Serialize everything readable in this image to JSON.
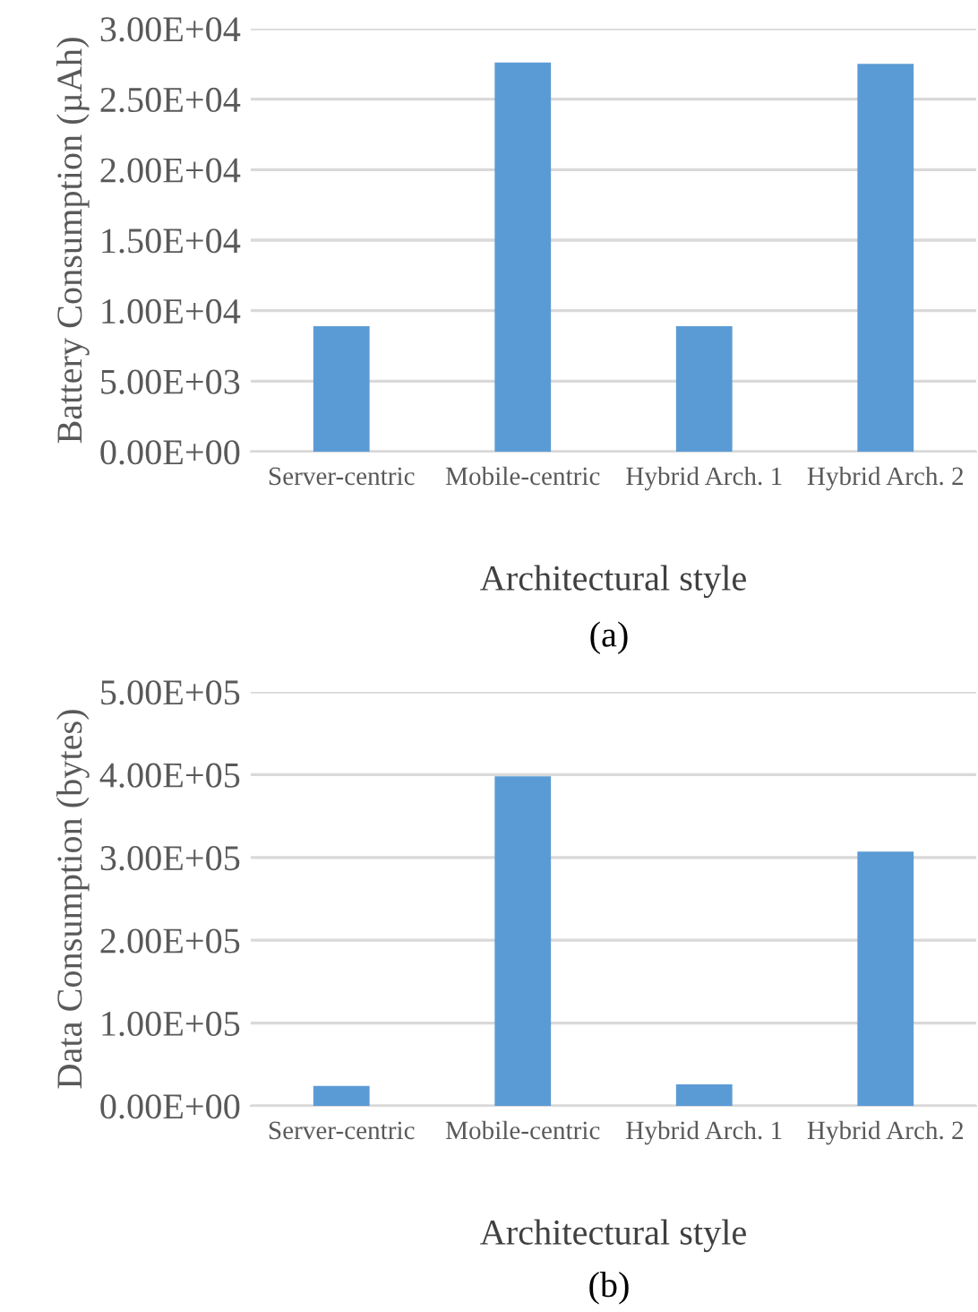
{
  "chart_data": [
    {
      "type": "bar",
      "categories": [
        "Server-centric",
        "Mobile-centric",
        "Hybrid Arch. 1",
        "Hybrid Arch. 2"
      ],
      "series": [
        {
          "color": "#5b9bd5",
          "values": [
            8900,
            27600,
            8900,
            27500
          ]
        }
      ],
      "xlabel": "Architectural style",
      "ylabel": "Battery Consumption (µAh)",
      "annotations": [
        "(a)"
      ],
      "ylim": [
        0,
        30000
      ],
      "yticks": [
        {
          "value": 0,
          "label": "0.00E+00"
        },
        {
          "value": 5000,
          "label": "5.00E+03"
        },
        {
          "value": 10000,
          "label": "1.00E+04"
        },
        {
          "value": 15000,
          "label": "1.50E+04"
        },
        {
          "value": 20000,
          "label": "2.00E+04"
        },
        {
          "value": 25000,
          "label": "2.50E+04"
        },
        {
          "value": 30000,
          "label": "3.00E+04"
        }
      ],
      "grid": "y",
      "legend": false
    },
    {
      "type": "bar",
      "categories": [
        "Server-centric",
        "Mobile-centric",
        "Hybrid Arch. 1",
        "Hybrid Arch. 2"
      ],
      "series": [
        {
          "color": "#5b9bd5",
          "values": [
            24000,
            398000,
            26000,
            307000
          ]
        }
      ],
      "xlabel": "Architectural style",
      "ylabel": "Data Consumption (bytes)",
      "annotations": [
        "(b)"
      ],
      "ylim": [
        0,
        500000
      ],
      "yticks": [
        {
          "value": 0,
          "label": "0.00E+00"
        },
        {
          "value": 100000,
          "label": "1.00E+05"
        },
        {
          "value": 200000,
          "label": "2.00E+05"
        },
        {
          "value": 300000,
          "label": "3.00E+05"
        },
        {
          "value": 400000,
          "label": "4.00E+05"
        },
        {
          "value": 500000,
          "label": "5.00E+05"
        }
      ],
      "grid": "y",
      "legend": false
    }
  ]
}
